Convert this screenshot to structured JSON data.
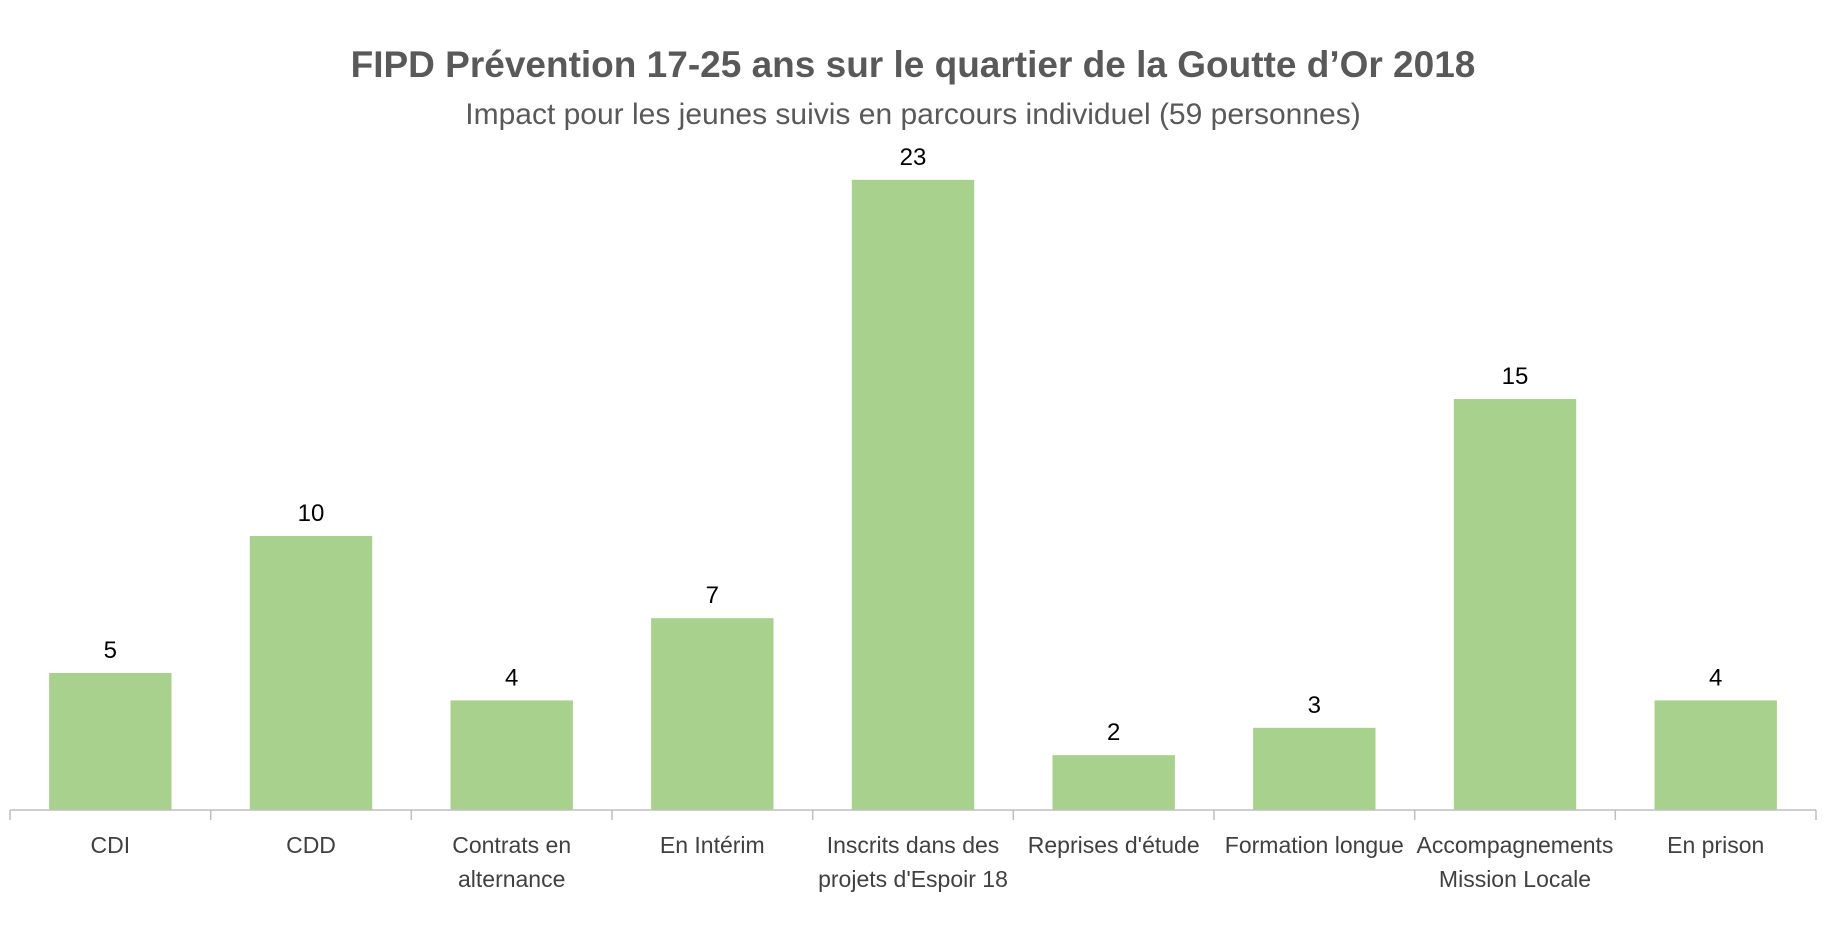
{
  "chart_data": {
    "type": "bar",
    "title": "FIPD Prévention 17-25 ans sur le quartier de la Goutte d’Or 2018",
    "subtitle": "Impact pour les jeunes suivis en parcours individuel (59 personnes)",
    "categories": [
      [
        "CDI"
      ],
      [
        "CDD"
      ],
      [
        "Contrats en",
        "alternance"
      ],
      [
        "En Intérim"
      ],
      [
        "Inscrits dans des",
        "projets d'Espoir 18"
      ],
      [
        "Reprises d'étude"
      ],
      [
        "Formation longue"
      ],
      [
        "Accompagnements",
        "Mission Locale"
      ],
      [
        "En prison"
      ]
    ],
    "values": [
      5,
      10,
      4,
      7,
      23,
      2,
      3,
      15,
      4
    ],
    "ylim": [
      0,
      25
    ],
    "grid": false,
    "data_labels": true,
    "bar_color": "#a9d18e",
    "axis_color": "#bfbfbf"
  }
}
